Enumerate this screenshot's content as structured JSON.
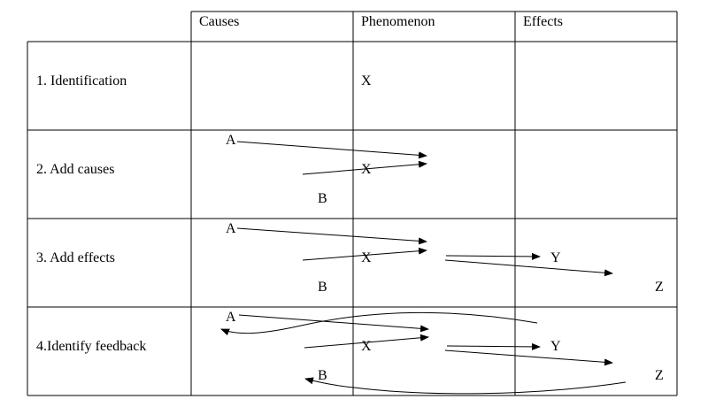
{
  "table": {
    "headers": {
      "causes": "Causes",
      "phenomenon": "Phenomenon",
      "effects": "Effects"
    },
    "rows": [
      {
        "label": "1. Identification"
      },
      {
        "label": "2. Add causes"
      },
      {
        "label": "3. Add effects"
      },
      {
        "label": "4.Identify feedback"
      }
    ]
  },
  "nodes": {
    "cause_a": "A",
    "cause_b": "B",
    "phenomenon_x": "X",
    "effect_y": "Y",
    "effect_z": "Z"
  }
}
